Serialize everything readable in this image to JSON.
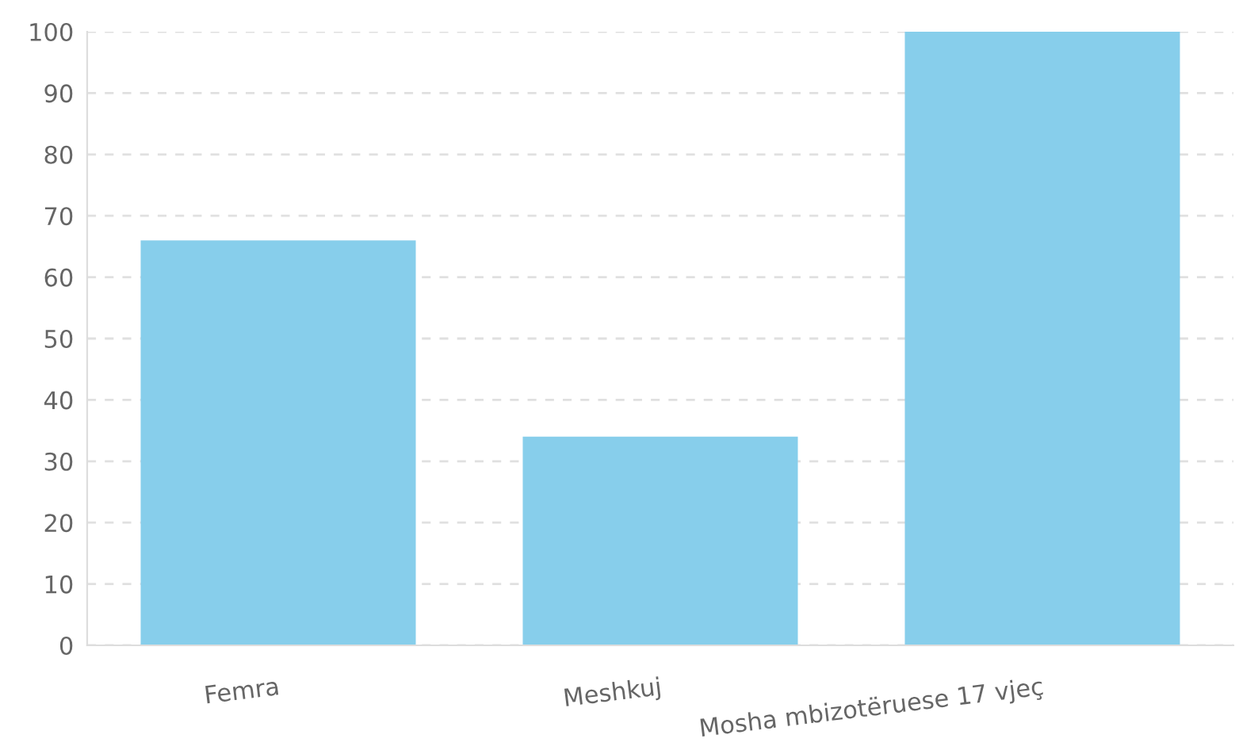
{
  "chart_data": {
    "type": "bar",
    "categories": [
      "Femra",
      "Meshkuj",
      "Mosha mbizotëruese 17 vjeç"
    ],
    "values": [
      66,
      34,
      100
    ],
    "color": "#87ceeb",
    "ylim": [
      0,
      100
    ],
    "yticks": [
      0,
      10,
      20,
      30,
      40,
      50,
      60,
      70,
      80,
      90,
      100
    ],
    "grid": "y",
    "legend": false
  }
}
